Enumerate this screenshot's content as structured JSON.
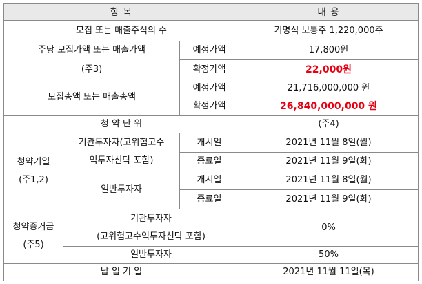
{
  "table": {
    "header": {
      "item": "항 목",
      "content": "내 용"
    },
    "rows": {
      "shares_label": "모집 또는 매출주식의 수",
      "shares_value": "기명식 보통주 1,220,000주",
      "price_label_line1": "주당 모집가액 또는 매출가액",
      "price_label_line2": "(주3)",
      "price_expected_label": "예정가액",
      "price_expected_value": "17,800원",
      "price_final_label": "확정가액",
      "price_final_value": "22,000원",
      "total_label": "모집총액 또는 매출총액",
      "total_expected_label": "예정가액",
      "total_expected_value": "21,716,000,000 원",
      "total_final_label": "확정가액",
      "total_final_value": "26,840,000,000 원",
      "unit_label": "청 약 단 위",
      "unit_value": "(주4)",
      "sub_date_label_line1": "청약기일",
      "sub_date_label_line2": "(주1,2)",
      "inst_label_line1": "기관투자자(고위험고수",
      "inst_label_line2": "익투자신탁 포함)",
      "inst_start_label": "개시일",
      "inst_start_value": "2021년 11월 8일(월)",
      "inst_end_label": "종료일",
      "inst_end_value": "2021년 11월 9일(화)",
      "retail_label": "일반투자자",
      "retail_start_label": "개시일",
      "retail_start_value": "2021년 11월 8일(월)",
      "retail_end_label": "종료일",
      "retail_end_value": "2021년 11월 9일(화)",
      "deposit_label_line1": "청약증거금",
      "deposit_label_line2": "(주5)",
      "deposit_inst_line1": "기관투자자",
      "deposit_inst_line2": "(고위험고수익투자신탁 포함)",
      "deposit_inst_value": "0%",
      "deposit_retail_label": "일반투자자",
      "deposit_retail_value": "50%",
      "payment_label": "납 입 기 일",
      "payment_value": "2021년 11월 11일(목)"
    }
  },
  "colors": {
    "header_bg": "#e9e9e9",
    "border": "#8a8a8a",
    "highlight": "#e60012"
  }
}
